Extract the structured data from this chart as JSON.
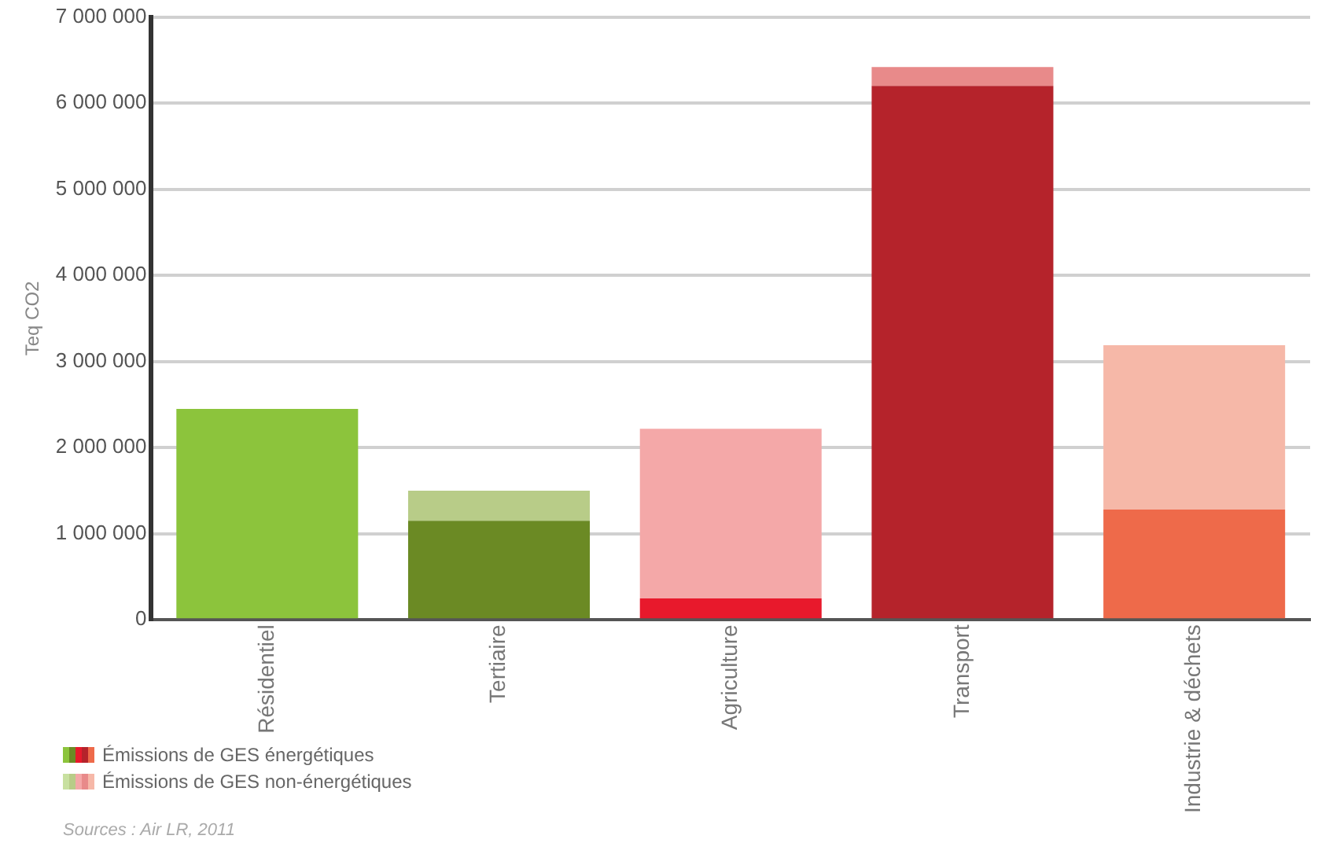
{
  "chart_data": {
    "type": "bar",
    "stacked": true,
    "ylabel": "Teq CO2",
    "categories": [
      "Résidentiel",
      "Tertiaire",
      "Agriculture",
      "Transport",
      "Industrie & déchets"
    ],
    "series": [
      {
        "name": "Émissions de GES énergétiques",
        "colors": [
          "#8cc43c",
          "#6b8a24",
          "#e8192c",
          "#b5232b",
          "#ee6a4a"
        ],
        "values": [
          2450000,
          1150000,
          250000,
          6200000,
          1280000
        ]
      },
      {
        "name": "Émissions de GES non-énergétiques",
        "colors": [
          "#c8e0a0",
          "#b8cc88",
          "#f4a8a8",
          "#e88a8a",
          "#f6b8a8"
        ],
        "values": [
          0,
          350000,
          1970000,
          220000,
          1910000
        ]
      }
    ],
    "ylim": [
      0,
      7000000
    ],
    "yticks": [
      {
        "value": 0,
        "label": "0"
      },
      {
        "value": 1000000,
        "label": "1 000 000"
      },
      {
        "value": 2000000,
        "label": "2 000 000"
      },
      {
        "value": 3000000,
        "label": "3 000 000"
      },
      {
        "value": 4000000,
        "label": "4 000 000"
      },
      {
        "value": 5000000,
        "label": "5 000 000"
      },
      {
        "value": 6000000,
        "label": "6 000 000"
      },
      {
        "value": 7000000,
        "label": "7 000 000"
      }
    ],
    "grid": "y",
    "legend": "bottom left",
    "annotations": [
      "Sources : Air LR, 2011"
    ]
  }
}
